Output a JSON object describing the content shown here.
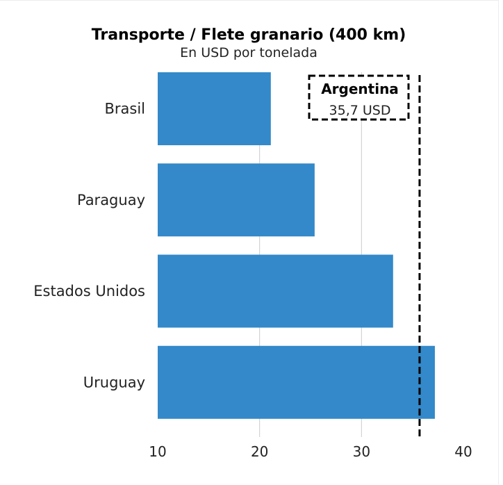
{
  "chart_data": {
    "type": "bar",
    "orientation": "horizontal",
    "title": "Transporte / Flete granario (400 km)",
    "subtitle": "En USD por tonelada",
    "categories": [
      "Brasil",
      "Paraguay",
      "Estados Unidos",
      "Uruguay"
    ],
    "values": [
      21.1,
      25.4,
      33.1,
      37.2
    ],
    "xlim": [
      10,
      40
    ],
    "xticks": [
      10,
      20,
      30,
      40
    ],
    "grid": true,
    "bar_color": "#3389c9",
    "grid_color": "#cccccc",
    "reference_line": {
      "value": 35.7,
      "name": "Argentina",
      "label": "35,7 USD",
      "style": "dashed",
      "color": "#000000"
    }
  }
}
